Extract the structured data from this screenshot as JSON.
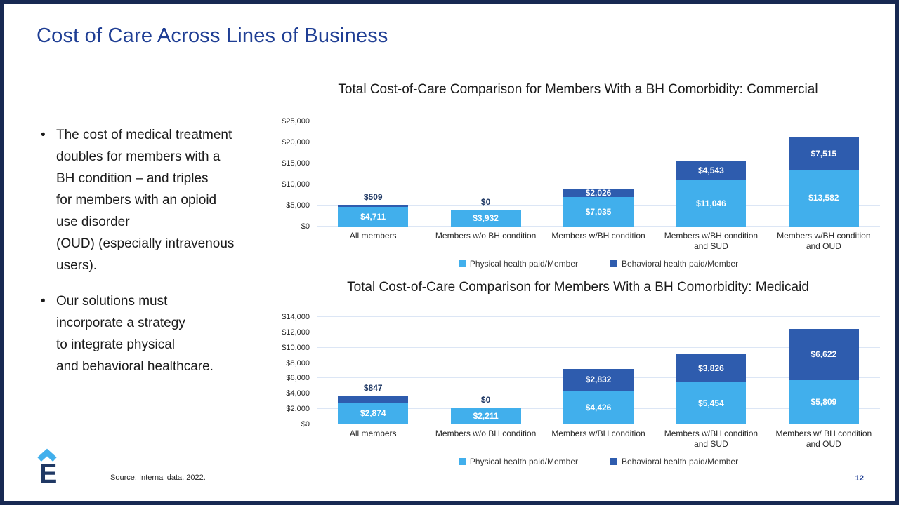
{
  "slide": {
    "title": "Cost of Care Across Lines of Business",
    "bullets": [
      "The cost of medical treatment\ndoubles for members with a\nBH condition – and triples\nfor members with an opioid\nuse disorder\n(OUD) (especially intravenous\nusers).",
      "Our solutions must\nincorporate a strategy\nto integrate physical\nand behavioral healthcare."
    ],
    "source_note": "Source: Internal data, 2022.",
    "page_number": "12",
    "logo_letter": "E"
  },
  "colors": {
    "physical_blue": "#41AFEC",
    "behavioral_blue": "#2E5CAE",
    "title_blue": "#1F3E94",
    "label_navy": "#1F3864",
    "frame_navy": "#182952",
    "gridline": "#DCE6F5"
  },
  "chart_data": [
    {
      "type": "bar",
      "stacked": true,
      "title": "Total Cost-of-Care Comparison for Members With a BH Comorbidity: Commercial",
      "categories": [
        "All members",
        "Members w/o BH condition",
        "Members w/BH condition",
        "Members w/BH condition\nand SUD",
        "Members w/BH condition\nand OUD"
      ],
      "series": [
        {
          "name": "Physical health paid/Member",
          "color": "#41AFEC",
          "values": [
            4711,
            3932,
            7035,
            11046,
            13582
          ],
          "labels": [
            "$4,711",
            "$3,932",
            "$7,035",
            "$11,046",
            "$13,582"
          ]
        },
        {
          "name": "Behavioral health paid/Member",
          "color": "#2E5CAE",
          "values": [
            509,
            0,
            2026,
            4543,
            7515
          ],
          "labels": [
            "$509",
            "$0",
            "$2,026",
            "$4,543",
            "$7,515"
          ]
        }
      ],
      "xlabel": "",
      "ylabel": "",
      "ylim": [
        0,
        25000
      ],
      "ytick_values": [
        0,
        5000,
        10000,
        15000,
        20000,
        25000
      ],
      "ytick_labels": [
        "$0",
        "$5,000",
        "$10,000",
        "$15,000",
        "$20,000",
        "$25,000"
      ],
      "grid": true,
      "legend_position": "bottom"
    },
    {
      "type": "bar",
      "stacked": true,
      "title": "Total Cost-of-Care Comparison for Members With a BH Comorbidity: Medicaid",
      "categories": [
        "All members",
        "Members w/o BH condition",
        "Members w/BH condition",
        "Members w/BH condition\nand SUD",
        "Members w/ BH condition\nand OUD"
      ],
      "series": [
        {
          "name": "Physical health paid/Member",
          "color": "#41AFEC",
          "values": [
            2874,
            2211,
            4426,
            5454,
            5809
          ],
          "labels": [
            "$2,874",
            "$2,211",
            "$4,426",
            "$5,454",
            "$5,809"
          ]
        },
        {
          "name": "Behavioral health paid/Member",
          "color": "#2E5CAE",
          "values": [
            847,
            0,
            2832,
            3826,
            6622
          ],
          "labels": [
            "$847",
            "$0",
            "$2,832",
            "$3,826",
            "$6,622"
          ]
        }
      ],
      "xlabel": "",
      "ylabel": "",
      "ylim": [
        0,
        14000
      ],
      "ytick_values": [
        0,
        2000,
        4000,
        6000,
        8000,
        10000,
        12000,
        14000
      ],
      "ytick_labels": [
        "$0",
        "$2,000",
        "$4,000",
        "$6,000",
        "$8,000",
        "$10,000",
        "$12,000",
        "$14,000"
      ],
      "grid": true,
      "legend_position": "bottom"
    }
  ]
}
